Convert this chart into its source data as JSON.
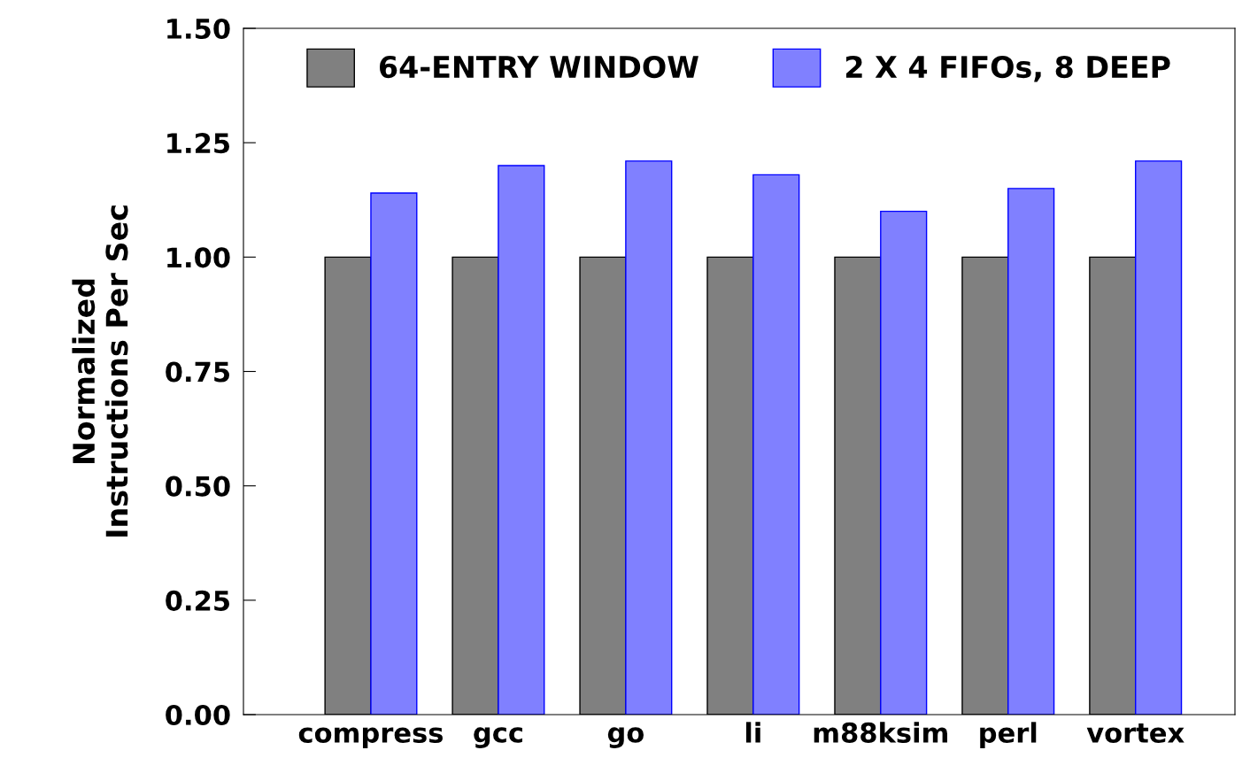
{
  "chart_data": {
    "type": "bar",
    "ylabel": "Normalized\nInstructions Per Sec",
    "categories": [
      "compress",
      "gcc",
      "go",
      "li",
      "m88ksim",
      "perl",
      "vortex"
    ],
    "series": [
      {
        "name": "64-ENTRY WINDOW",
        "color": "#808080",
        "values": [
          1.0,
          1.0,
          1.0,
          1.0,
          1.0,
          1.0,
          1.0
        ]
      },
      {
        "name": "2 X 4 FIFOs, 8 DEEP",
        "color": "#8080ff",
        "values": [
          1.14,
          1.2,
          1.21,
          1.18,
          1.1,
          1.15,
          1.21
        ]
      }
    ],
    "ylim": [
      0,
      1.5
    ],
    "yticks": [
      {
        "value": 0,
        "label": "0.00"
      },
      {
        "value": 0.25,
        "label": "0.25"
      },
      {
        "value": 0.5,
        "label": "0.50"
      },
      {
        "value": 0.75,
        "label": "0.75"
      },
      {
        "value": 1.0,
        "label": "1.00"
      },
      {
        "value": 1.25,
        "label": "1.25"
      },
      {
        "value": 1.5,
        "label": "1.50"
      }
    ],
    "legend": "top",
    "grid": false
  }
}
